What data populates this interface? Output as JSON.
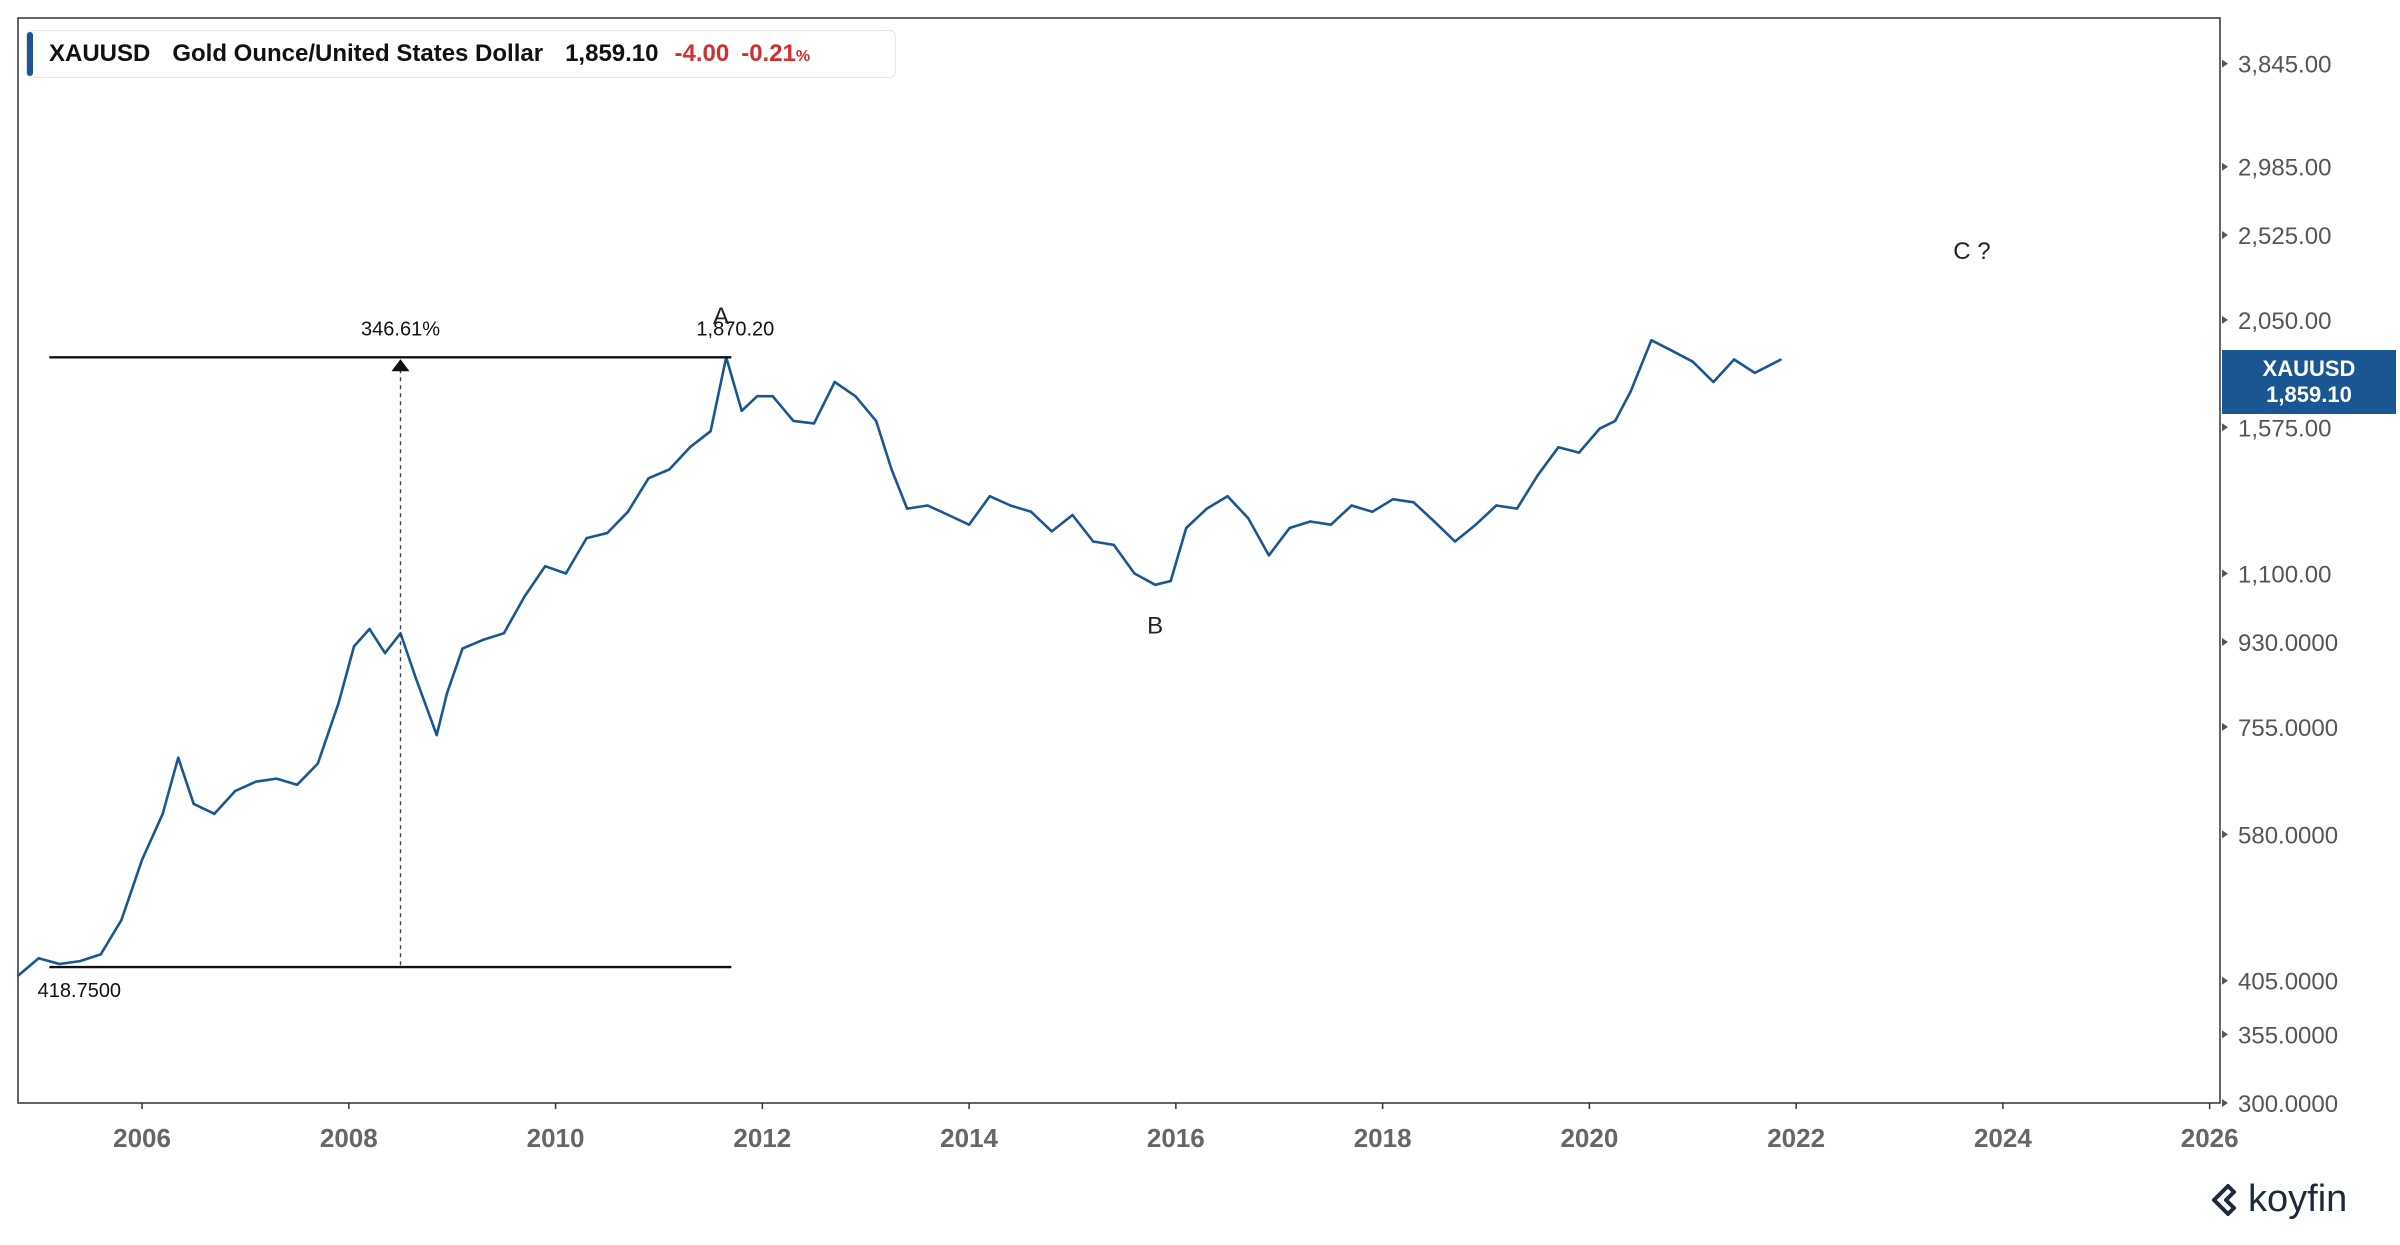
{
  "legend": {
    "symbol": "XAUUSD",
    "name": "Gold Ounce/United States Dollar",
    "price": "1,859.10",
    "change": "-4.00",
    "change_pct": "-0.21",
    "pct_sign": "%"
  },
  "price_tag": {
    "symbol": "XAUUSD",
    "price": "1,859.10"
  },
  "logo": {
    "text": "koyfin",
    "icon": "koyfin-logo-icon"
  },
  "colors": {
    "series": "#1a5692",
    "negative": "#d32f2f",
    "tag_bg": "#1a5692"
  },
  "chart_data": {
    "type": "line",
    "scale": "log",
    "title": "XAUUSD Gold Ounce/United States Dollar",
    "xlabel": "",
    "ylabel": "",
    "xlim": [
      2004.8,
      2026.1
    ],
    "ylim": [
      300,
      4300
    ],
    "x_ticks": [
      {
        "value": 2006,
        "label": "2006"
      },
      {
        "value": 2008,
        "label": "2008"
      },
      {
        "value": 2010,
        "label": "2010"
      },
      {
        "value": 2012,
        "label": "2012"
      },
      {
        "value": 2014,
        "label": "2014"
      },
      {
        "value": 2016,
        "label": "2016"
      },
      {
        "value": 2018,
        "label": "2018"
      },
      {
        "value": 2020,
        "label": "2020"
      },
      {
        "value": 2022,
        "label": "2022"
      },
      {
        "value": 2024,
        "label": "2024"
      },
      {
        "value": 2026,
        "label": "2026"
      }
    ],
    "y_ticks": [
      {
        "value": 3845,
        "label": "3,845.00"
      },
      {
        "value": 2985,
        "label": "2,985.00"
      },
      {
        "value": 2525,
        "label": "2,525.00"
      },
      {
        "value": 2050,
        "label": "2,050.00"
      },
      {
        "value": 1575,
        "label": "1,575.00"
      },
      {
        "value": 1100,
        "label": "1,100.00"
      },
      {
        "value": 930,
        "label": "930.0000"
      },
      {
        "value": 755,
        "label": "755.0000"
      },
      {
        "value": 580,
        "label": "580.0000"
      },
      {
        "value": 405,
        "label": "405.0000"
      },
      {
        "value": 355,
        "label": "355.0000"
      },
      {
        "value": 300,
        "label": "300.0000"
      }
    ],
    "series": [
      {
        "x": [
          2004.8,
          2005.0,
          2005.2,
          2005.4,
          2005.6,
          2005.8,
          2006.0,
          2006.2,
          2006.35,
          2006.5,
          2006.7,
          2006.9,
          2007.1,
          2007.3,
          2007.5,
          2007.7,
          2007.9,
          2008.05,
          2008.2,
          2008.35,
          2008.5,
          2008.65,
          2008.85,
          2008.95,
          2009.1,
          2009.3,
          2009.5,
          2009.7,
          2009.9,
          2010.1,
          2010.3,
          2010.5,
          2010.7,
          2010.9,
          2011.1,
          2011.3,
          2011.5,
          2011.65,
          2011.8,
          2011.95,
          2012.1,
          2012.3,
          2012.5,
          2012.7,
          2012.9,
          2013.1,
          2013.25,
          2013.4,
          2013.6,
          2013.8,
          2014.0,
          2014.2,
          2014.4,
          2014.6,
          2014.8,
          2015.0,
          2015.2,
          2015.4,
          2015.6,
          2015.8,
          2015.95,
          2016.1,
          2016.3,
          2016.5,
          2016.7,
          2016.9,
          2017.1,
          2017.3,
          2017.5,
          2017.7,
          2017.9,
          2018.1,
          2018.3,
          2018.5,
          2018.7,
          2018.9,
          2019.1,
          2019.3,
          2019.5,
          2019.7,
          2019.9,
          2020.1,
          2020.25,
          2020.4,
          2020.6,
          2020.8,
          2021.0,
          2021.2,
          2021.4,
          2021.6,
          2021.85
        ],
        "y": [
          410,
          428,
          422,
          425,
          432,
          470,
          545,
          610,
          700,
          625,
          610,
          645,
          660,
          665,
          655,
          690,
          800,
          920,
          960,
          905,
          950,
          850,
          740,
          820,
          915,
          935,
          950,
          1040,
          1120,
          1100,
          1200,
          1215,
          1280,
          1390,
          1420,
          1500,
          1560,
          1870,
          1640,
          1700,
          1700,
          1600,
          1590,
          1760,
          1700,
          1600,
          1420,
          1290,
          1300,
          1270,
          1240,
          1330,
          1300,
          1280,
          1220,
          1270,
          1190,
          1180,
          1100,
          1070,
          1080,
          1230,
          1290,
          1330,
          1260,
          1150,
          1230,
          1250,
          1240,
          1300,
          1280,
          1320,
          1310,
          1250,
          1190,
          1240,
          1300,
          1290,
          1400,
          1500,
          1480,
          1570,
          1600,
          1720,
          1950,
          1900,
          1850,
          1760,
          1860,
          1800,
          1859
        ]
      }
    ],
    "annotations": [
      {
        "text": "A",
        "x": 2011.6,
        "y": 2030
      },
      {
        "text": "B",
        "x": 2015.8,
        "y": 950
      },
      {
        "text": "C ?",
        "x": 2023.7,
        "y": 2380
      }
    ],
    "measure": {
      "percent_label": "346.61%",
      "high_label": "1,870.20",
      "low_label": "418.7500",
      "high": 1870.2,
      "low": 418.75,
      "x_start": 2005.2,
      "x_end": 2011.7,
      "x_arrow": 2008.5
    }
  }
}
